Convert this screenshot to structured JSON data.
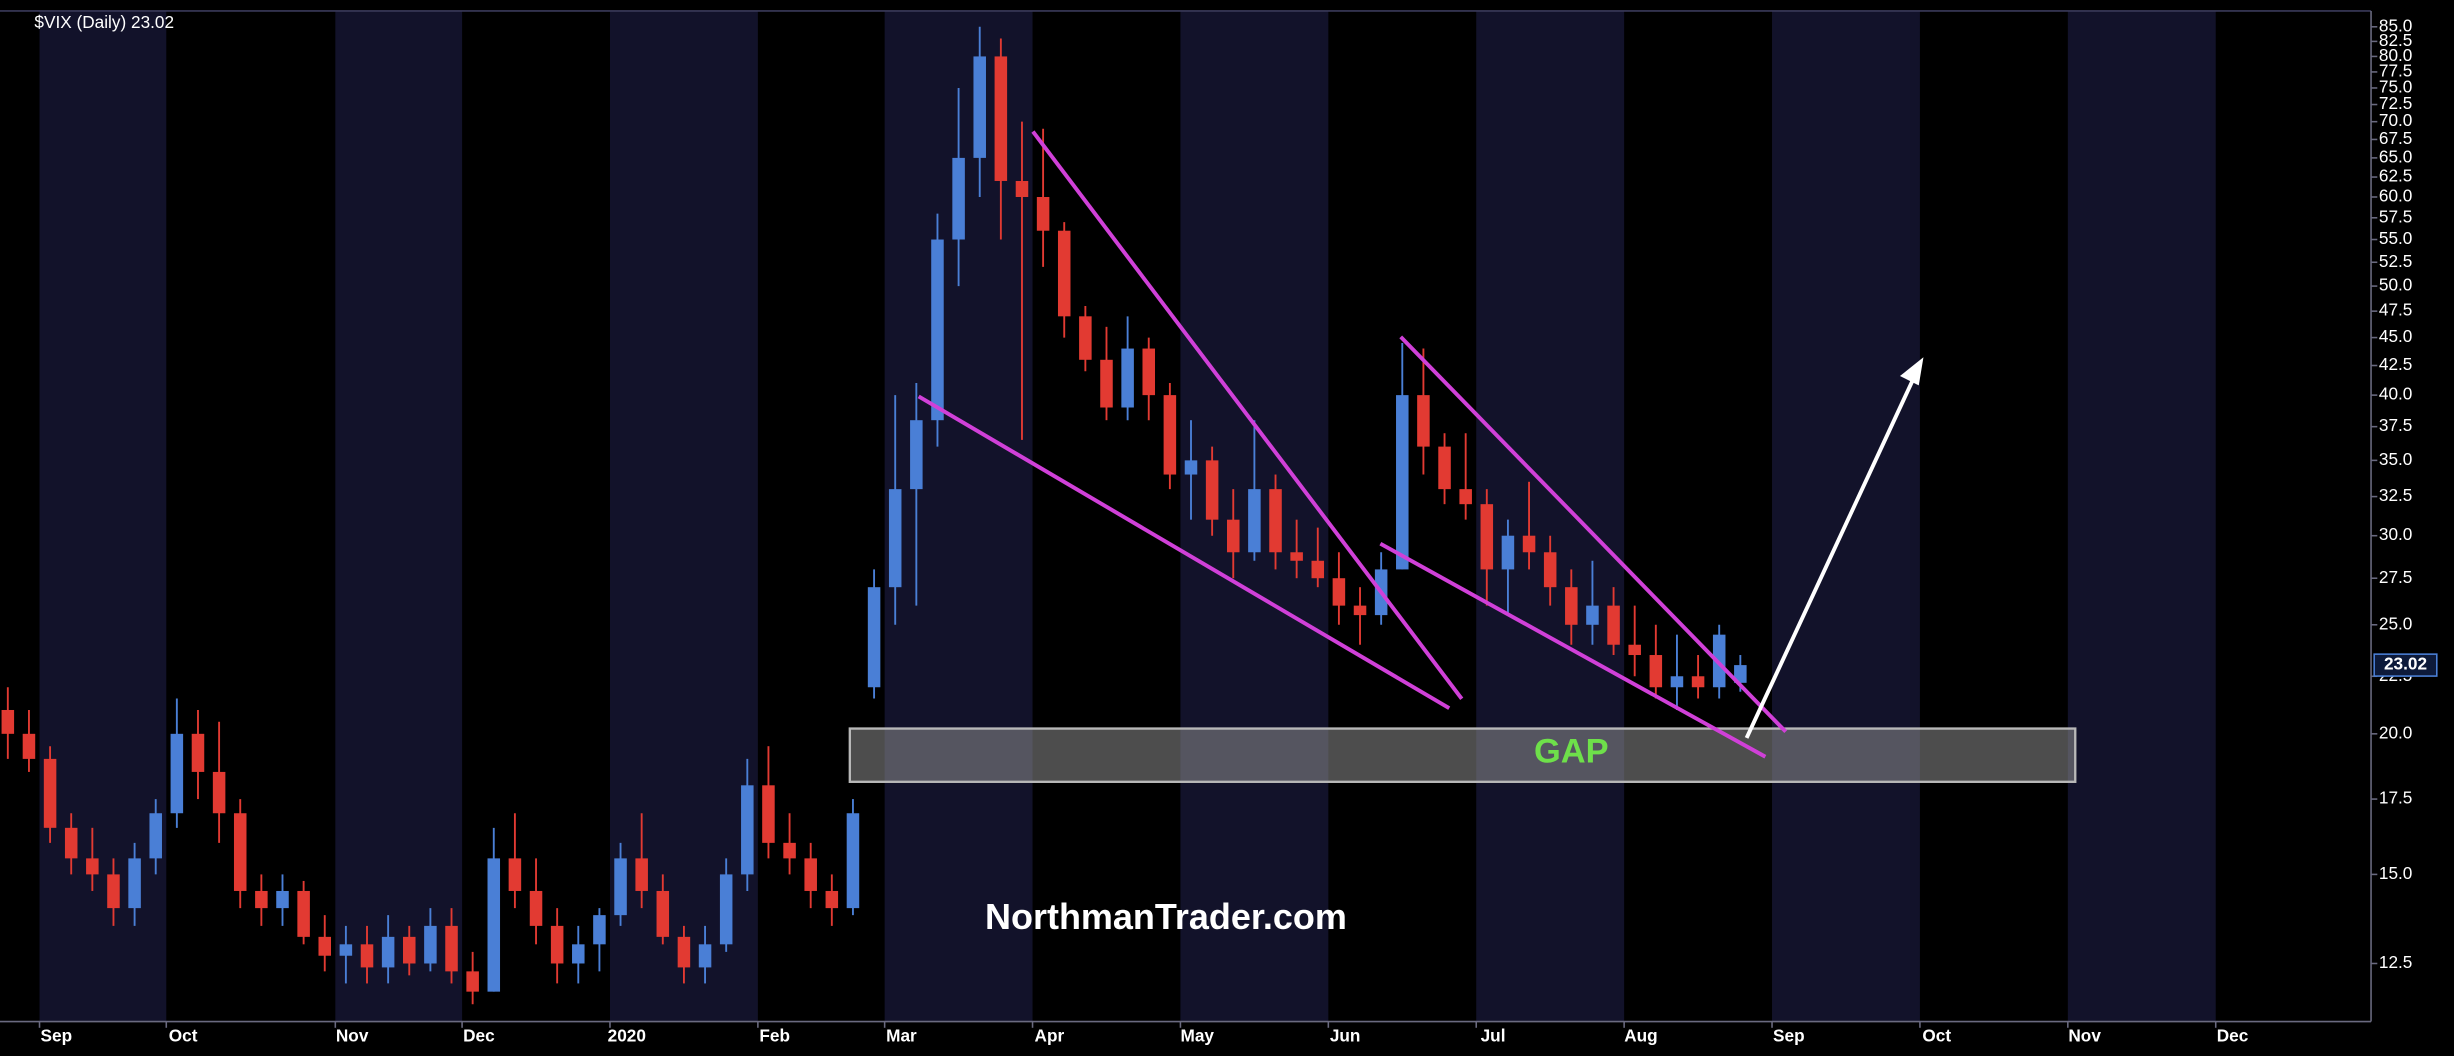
{
  "chart_data": {
    "type": "candlestick",
    "title": "$VIX (Daily) 23.02",
    "log_scale": true,
    "up_color": "#4a7fd6",
    "down_color": "#e23a32",
    "annotations": {
      "gap": "GAP",
      "watermark": "NorthmanTrader.com"
    },
    "categories": [
      null,
      null,
      "Sep",
      null,
      null,
      null,
      null,
      null,
      "Oct",
      null,
      null,
      null,
      null,
      null,
      null,
      null,
      "Nov",
      null,
      null,
      null,
      null,
      null,
      "Dec",
      null,
      null,
      null,
      null,
      null,
      null,
      "2020",
      null,
      null,
      null,
      null,
      null,
      null,
      "Feb",
      null,
      null,
      null,
      null,
      null,
      "Mar",
      null,
      null,
      null,
      null,
      null,
      null,
      "Apr",
      null,
      null,
      null,
      null,
      null,
      null,
      "May",
      null,
      null,
      null,
      null,
      null,
      null,
      "Jun",
      null,
      null,
      null,
      null,
      null,
      null,
      "Jul",
      null,
      null,
      null,
      null,
      null,
      null,
      "Aug",
      null,
      null,
      null,
      null,
      null,
      null,
      "Sep",
      null,
      null,
      null,
      null,
      null,
      null,
      "Oct",
      null,
      null,
      null,
      null,
      null,
      null,
      "Nov",
      null,
      null,
      null,
      null,
      null,
      null,
      "Dec",
      null,
      null,
      null,
      null,
      null,
      null
    ],
    "open": [
      21,
      20,
      19,
      16.5,
      15.5,
      15,
      14,
      15.5,
      17,
      20,
      18.5,
      17,
      14.5,
      14,
      14.5,
      13.2,
      12.7,
      13,
      12.4,
      13.2,
      12.5,
      13.5,
      12.3,
      11.8,
      15.5,
      14.5,
      13.5,
      12.5,
      13,
      13.8,
      15.5,
      14.5,
      13.2,
      12.4,
      13,
      15,
      18,
      16,
      15.5,
      14.5,
      14,
      22,
      27,
      33,
      38,
      55,
      65,
      80,
      62,
      60,
      56,
      47,
      43,
      39,
      44,
      40,
      34,
      35,
      31,
      29,
      33,
      29,
      28.5,
      27.5,
      26,
      25.5,
      28,
      40,
      36,
      33,
      32,
      28,
      30,
      29,
      27,
      25,
      26,
      24,
      23.5,
      22,
      22.5,
      22,
      22.2,
      null,
      null,
      null,
      null,
      null,
      null,
      null,
      null,
      null,
      null,
      null,
      null,
      null,
      null,
      null,
      null,
      null,
      null,
      null,
      null,
      null,
      null,
      null,
      null,
      null,
      null,
      null,
      null,
      null
    ],
    "high": [
      22,
      21,
      19.5,
      17,
      16.5,
      15.5,
      16,
      17.5,
      21.5,
      21,
      20.5,
      17.5,
      15,
      15,
      14.8,
      13.8,
      13.5,
      13.5,
      13.8,
      13.5,
      14,
      14,
      12.8,
      16.5,
      17,
      15.5,
      14,
      13.5,
      14,
      16,
      17,
      15,
      13.5,
      13.5,
      15.5,
      19,
      19.5,
      17,
      16,
      15,
      17.5,
      28,
      40,
      41,
      58,
      75,
      85,
      83,
      70,
      69,
      57,
      48,
      46,
      47,
      45,
      41,
      38,
      36,
      33,
      38,
      34,
      31,
      30.5,
      29,
      27,
      29,
      44.5,
      44,
      37,
      37,
      33,
      31,
      33.5,
      30,
      28,
      28.5,
      27,
      26,
      25,
      24.5,
      23.5,
      25,
      23.5,
      null,
      null,
      null,
      null,
      null,
      null,
      null,
      null,
      null,
      null,
      null,
      null,
      null,
      null,
      null,
      null,
      null,
      null,
      null,
      null,
      null,
      null,
      null,
      null,
      null,
      null,
      null,
      null,
      null
    ],
    "low": [
      19,
      18.5,
      16,
      15,
      14.5,
      13.5,
      13.5,
      15,
      16.5,
      17.5,
      16,
      14,
      13.5,
      13.5,
      13,
      12.3,
      12,
      12,
      12,
      12.2,
      12.3,
      12,
      11.5,
      11.8,
      14,
      13,
      12,
      12,
      12.3,
      13.5,
      14,
      13,
      12,
      12,
      12.8,
      14.5,
      15.5,
      15,
      14,
      13.5,
      13.8,
      21.5,
      25,
      26,
      36,
      50,
      60,
      55,
      36.5,
      52,
      45,
      42,
      38,
      38,
      38,
      33,
      31,
      30,
      27.5,
      28.5,
      28,
      27.5,
      27,
      25,
      24,
      25,
      28,
      34,
      32,
      31,
      26,
      25.5,
      28,
      26,
      24,
      24,
      23.5,
      22.5,
      21.5,
      21,
      21.5,
      21.5,
      21.8,
      null,
      null,
      null,
      null,
      null,
      null,
      null,
      null,
      null,
      null,
      null,
      null,
      null,
      null,
      null,
      null,
      null,
      null,
      null,
      null,
      null,
      null,
      null,
      null,
      null,
      null,
      null,
      null,
      null
    ],
    "close": [
      20,
      19,
      16.5,
      15.5,
      15,
      14,
      15.5,
      17,
      20,
      18.5,
      17,
      14.5,
      14,
      14.5,
      13.2,
      12.7,
      13,
      12.4,
      13.2,
      12.5,
      13.5,
      12.3,
      11.8,
      15.5,
      14.5,
      13.5,
      12.5,
      13,
      13.8,
      15.5,
      14.5,
      13.2,
      12.4,
      13,
      15,
      18,
      16,
      15.5,
      14.5,
      14,
      17,
      27,
      33,
      38,
      55,
      65,
      80,
      62,
      60,
      56,
      47,
      43,
      39,
      44,
      40,
      34,
      35,
      31,
      29,
      33,
      29,
      28.5,
      27.5,
      26,
      25.5,
      28,
      40,
      36,
      33,
      32,
      28,
      30,
      29,
      27,
      25,
      26,
      24,
      23.5,
      22,
      22.5,
      22,
      24.5,
      23.02,
      null,
      null,
      null,
      null,
      null,
      null,
      null,
      null,
      null,
      null,
      null,
      null,
      null,
      null,
      null,
      null,
      null,
      null,
      null,
      null,
      null,
      null,
      null,
      null,
      null,
      null,
      null,
      null,
      null
    ],
    "ylim": [
      11.1,
      87.8
    ],
    "yticks": [
      12.5,
      {
        "value": 15,
        "label": "15.0"
      },
      17.5,
      {
        "value": 20,
        "label": "20.0"
      },
      22.5,
      {
        "value": 25,
        "label": "25.0"
      },
      27.5,
      {
        "value": 30,
        "label": "30.0"
      },
      32.5,
      {
        "value": 35,
        "label": "35.0"
      },
      37.5,
      {
        "value": 40,
        "label": "40.0"
      },
      42.5,
      {
        "value": 45,
        "label": "45.0"
      },
      47.5,
      {
        "value": 50,
        "label": "50.0"
      },
      52.5,
      {
        "value": 55,
        "label": "55.0"
      },
      57.5,
      {
        "value": 60,
        "label": "60.0"
      },
      62.5,
      {
        "value": 65,
        "label": "65.0"
      },
      67.5,
      {
        "value": 70,
        "label": "70.0"
      },
      72.5,
      {
        "value": 75,
        "label": "75.0"
      },
      77.5,
      {
        "value": 80,
        "label": "80.0"
      },
      82.5,
      {
        "value": 85,
        "label": "85.0"
      }
    ]
  }
}
